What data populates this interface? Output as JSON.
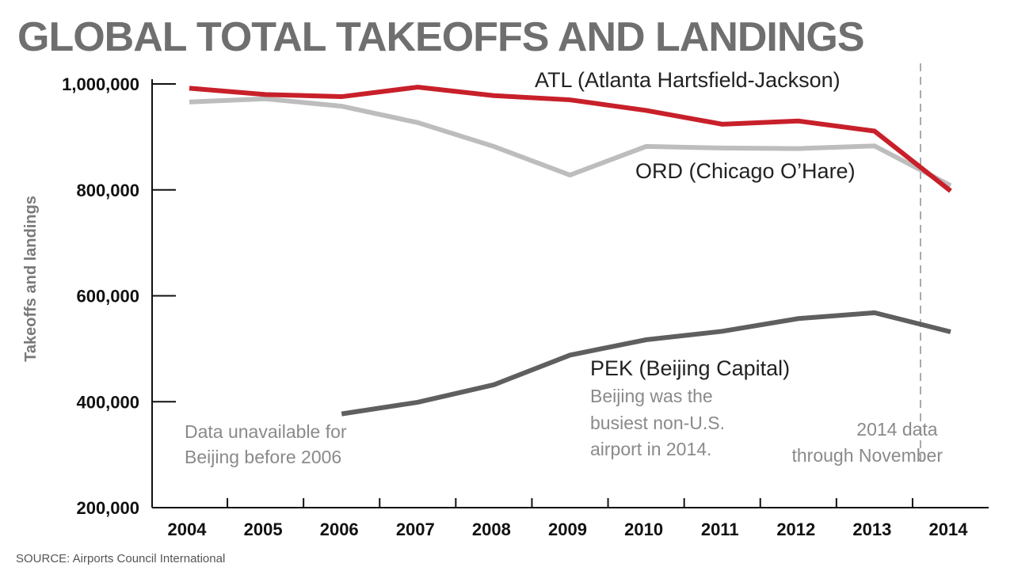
{
  "chart_data": {
    "type": "line",
    "title": "GLOBAL TOTAL TAKEOFFS AND LANDINGS",
    "ylabel": "Takeoffs and landings",
    "xlabel": "",
    "ylim": [
      200000,
      1000000
    ],
    "yticks": [
      200000,
      400000,
      600000,
      800000,
      1000000
    ],
    "ytick_labels": [
      "200,000",
      "400,000",
      "600,000",
      "800,000",
      "1,000,000"
    ],
    "categories": [
      "2004",
      "2005",
      "2006",
      "2007",
      "2008",
      "2009",
      "2010",
      "2011",
      "2012",
      "2013",
      "2014"
    ],
    "grid": false,
    "series": [
      {
        "name": "ATL (Atlanta Hartsfield-Jackson)",
        "color": "#c8202a",
        "values": [
          992000,
          980000,
          976000,
          994000,
          978000,
          970000,
          950000,
          924000,
          930000,
          911000,
          798000
        ]
      },
      {
        "name": "ORD (Chicago O’Hare)",
        "color": "#bdbdbd",
        "values": [
          966000,
          972000,
          958000,
          927000,
          882000,
          828000,
          882000,
          879000,
          878000,
          883000,
          808000
        ]
      },
      {
        "name": "PEK (Beijing Capital)",
        "color": "#5f5f5f",
        "values": [
          null,
          null,
          377000,
          399000,
          432000,
          488000,
          517000,
          533000,
          557000,
          568000,
          532000
        ]
      }
    ],
    "annotations": {
      "pek_missing": [
        "Data unavailable for",
        "Beijing before 2006"
      ],
      "pek_busiest": [
        "Beijing was the",
        "busiest non-U.S.",
        "airport in 2014."
      ],
      "partial_year": [
        "2014 data",
        "through November"
      ]
    },
    "source": "SOURCE: Airports Council International"
  }
}
